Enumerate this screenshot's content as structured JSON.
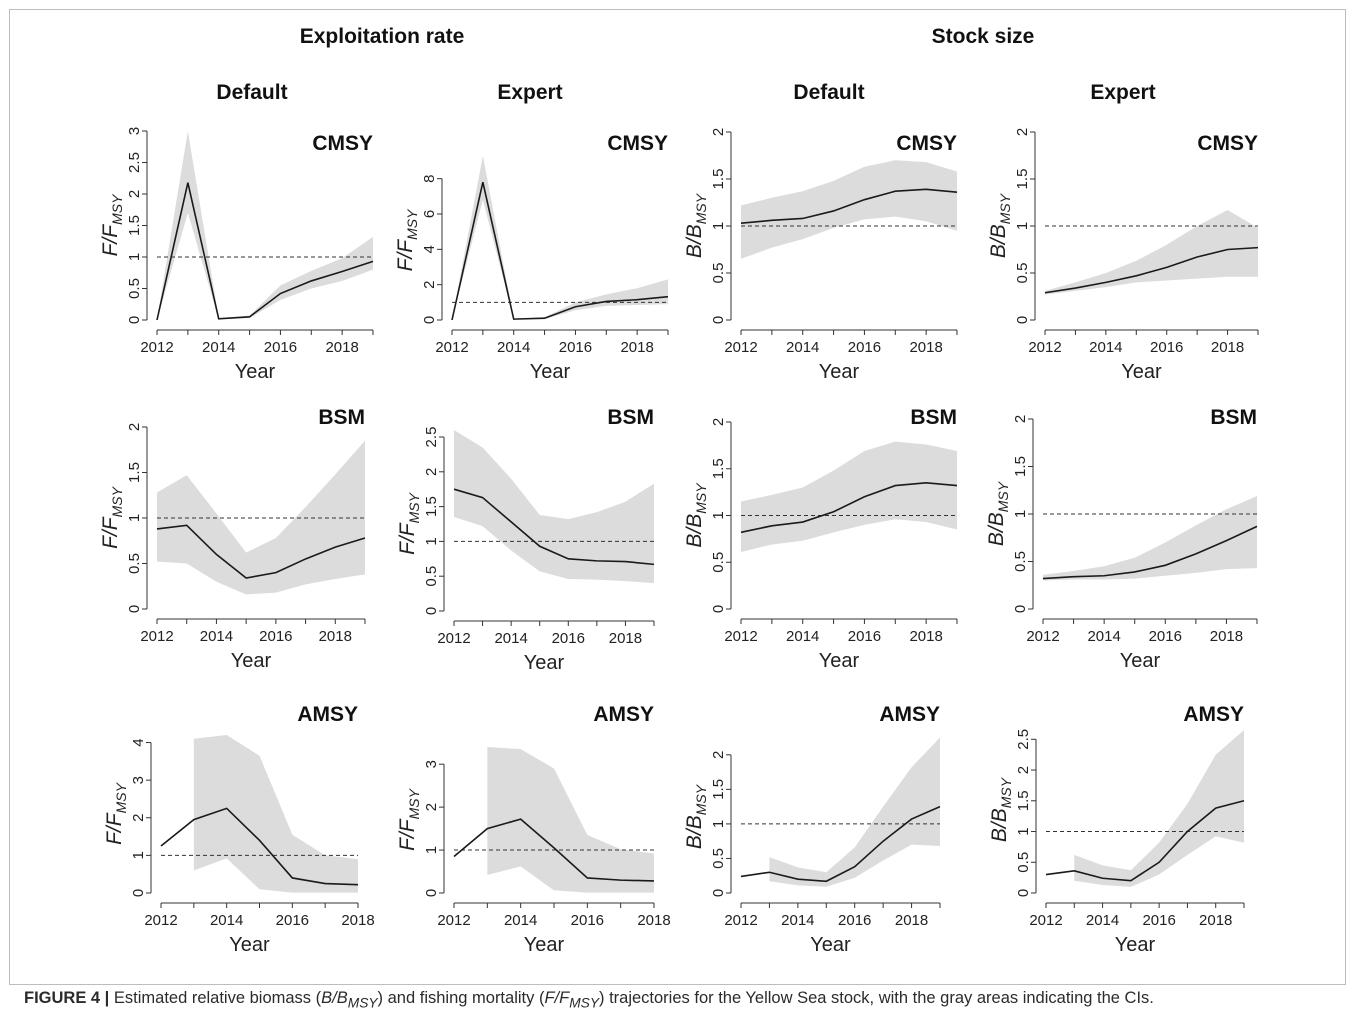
{
  "caption": {
    "label": "FIGURE 4 |",
    "parts": [
      "Estimated relative biomass (",
      "B/B",
      "MSY",
      ") and fishing mortality (",
      "F/F",
      "MSY",
      ") trajectories for the Yellow Sea stock, with the gray areas indicating the CIs."
    ]
  },
  "headers": {
    "groups": [
      "Exploitation rate",
      "Stock size"
    ],
    "columns": [
      "Default",
      "Expert",
      "Default",
      "Expert"
    ]
  },
  "colors": {
    "band": "#dcdcdc",
    "line": "#1a1a1a",
    "reference": "#333333"
  },
  "chart_data": [
    {
      "type": "line",
      "method": "CMSY",
      "column": "Default",
      "group": "Exploitation rate",
      "ylabel": "F/F",
      "ylabel_sub": "MSY",
      "xlabel": "Year",
      "ylim": [
        0,
        3
      ],
      "yticks": [
        0,
        0.5,
        1,
        1.5,
        2,
        2.5,
        3
      ],
      "xticks": [
        2012,
        2014,
        2016,
        2018
      ],
      "x": [
        2012,
        2013,
        2014,
        2015,
        2016,
        2017,
        2018,
        2019
      ],
      "values": [
        0,
        2.18,
        0.02,
        0.05,
        0.42,
        0.62,
        0.77,
        0.93
      ],
      "lower": [
        0,
        1.7,
        0.01,
        0.03,
        0.32,
        0.5,
        0.62,
        0.8
      ],
      "upper": [
        0,
        3.0,
        0.03,
        0.07,
        0.55,
        0.78,
        0.98,
        1.32
      ],
      "reference": 1
    },
    {
      "type": "line",
      "method": "CMSY",
      "column": "Expert",
      "group": "Exploitation rate",
      "ylabel": "F/F",
      "ylabel_sub": "MSY",
      "xlabel": "Year",
      "ylim": [
        0,
        9
      ],
      "yticks": [
        0,
        2,
        4,
        6,
        8
      ],
      "xticks": [
        2012,
        2014,
        2016,
        2018
      ],
      "x": [
        2012,
        2013,
        2014,
        2015,
        2016,
        2017,
        2018,
        2019
      ],
      "values": [
        0,
        7.8,
        0.05,
        0.1,
        0.75,
        1.05,
        1.15,
        1.32
      ],
      "lower": [
        0,
        6.8,
        0.03,
        0.05,
        0.55,
        0.8,
        0.85,
        0.9
      ],
      "upper": [
        0,
        9.3,
        0.08,
        0.15,
        1.0,
        1.45,
        1.8,
        2.3
      ],
      "reference": 1
    },
    {
      "type": "line",
      "method": "CMSY",
      "column": "Default",
      "group": "Stock size",
      "ylabel": "B/B",
      "ylabel_sub": "MSY",
      "xlabel": "Year",
      "ylim": [
        0,
        2
      ],
      "yticks": [
        0,
        0.5,
        1,
        1.5,
        2
      ],
      "xticks": [
        2012,
        2014,
        2016,
        2018
      ],
      "x": [
        2012,
        2013,
        2014,
        2015,
        2016,
        2017,
        2018,
        2019
      ],
      "values": [
        1.03,
        1.06,
        1.08,
        1.16,
        1.28,
        1.37,
        1.39,
        1.36
      ],
      "lower": [
        0.65,
        0.77,
        0.86,
        0.98,
        1.07,
        1.1,
        1.05,
        0.95
      ],
      "upper": [
        1.22,
        1.3,
        1.37,
        1.48,
        1.63,
        1.7,
        1.68,
        1.58
      ],
      "reference": 1
    },
    {
      "type": "line",
      "method": "CMSY",
      "column": "Expert",
      "group": "Stock size",
      "ylabel": "B/B",
      "ylabel_sub": "MSY",
      "xlabel": "Year",
      "ylim": [
        0,
        2
      ],
      "yticks": [
        0,
        0.5,
        1,
        1.5,
        2
      ],
      "xticks": [
        2012,
        2014,
        2016,
        2018
      ],
      "x": [
        2012,
        2013,
        2014,
        2015,
        2016,
        2017,
        2018,
        2019
      ],
      "values": [
        0.29,
        0.34,
        0.4,
        0.47,
        0.56,
        0.67,
        0.75,
        0.77
      ],
      "lower": [
        0.27,
        0.31,
        0.35,
        0.4,
        0.42,
        0.44,
        0.46,
        0.46
      ],
      "upper": [
        0.31,
        0.4,
        0.5,
        0.63,
        0.8,
        1.0,
        1.17,
        0.98
      ],
      "reference": 1
    },
    {
      "type": "line",
      "method": "BSM",
      "column": "Default",
      "group": "Exploitation rate",
      "ylabel": "F/F",
      "ylabel_sub": "MSY",
      "xlabel": "Year",
      "ylim": [
        0,
        2
      ],
      "yticks": [
        0,
        0.5,
        1,
        1.5,
        2
      ],
      "xticks": [
        2012,
        2014,
        2016,
        2018
      ],
      "x": [
        2012,
        2013,
        2014,
        2015,
        2016,
        2017,
        2018,
        2019
      ],
      "values": [
        0.88,
        0.92,
        0.6,
        0.34,
        0.4,
        0.55,
        0.68,
        0.78
      ],
      "lower": [
        0.52,
        0.5,
        0.3,
        0.16,
        0.18,
        0.27,
        0.33,
        0.38
      ],
      "upper": [
        1.28,
        1.47,
        1.05,
        0.62,
        0.78,
        1.12,
        1.48,
        1.85
      ],
      "reference": 1
    },
    {
      "type": "line",
      "method": "BSM",
      "column": "Expert",
      "group": "Exploitation rate",
      "ylabel": "F/F",
      "ylabel_sub": "MSY",
      "xlabel": "Year",
      "ylim": [
        0,
        2.5
      ],
      "yticks": [
        0,
        0.5,
        1,
        1.5,
        2,
        2.5
      ],
      "xticks": [
        2012,
        2014,
        2016,
        2018
      ],
      "x": [
        2012,
        2013,
        2014,
        2015,
        2016,
        2017,
        2018,
        2019
      ],
      "values": [
        1.75,
        1.63,
        1.28,
        0.93,
        0.75,
        0.72,
        0.71,
        0.67
      ],
      "lower": [
        1.35,
        1.22,
        0.87,
        0.57,
        0.46,
        0.45,
        0.43,
        0.4
      ],
      "upper": [
        2.6,
        2.35,
        1.9,
        1.38,
        1.32,
        1.42,
        1.57,
        1.83
      ],
      "reference": 1
    },
    {
      "type": "line",
      "method": "BSM",
      "column": "Default",
      "group": "Stock size",
      "ylabel": "B/B",
      "ylabel_sub": "MSY",
      "xlabel": "Year",
      "ylim": [
        0,
        2
      ],
      "yticks": [
        0,
        0.5,
        1,
        1.5,
        2
      ],
      "xticks": [
        2012,
        2014,
        2016,
        2018
      ],
      "x": [
        2012,
        2013,
        2014,
        2015,
        2016,
        2017,
        2018,
        2019
      ],
      "values": [
        0.82,
        0.89,
        0.93,
        1.04,
        1.2,
        1.32,
        1.35,
        1.32
      ],
      "lower": [
        0.61,
        0.69,
        0.73,
        0.82,
        0.9,
        0.96,
        0.93,
        0.85
      ],
      "upper": [
        1.15,
        1.22,
        1.3,
        1.48,
        1.69,
        1.79,
        1.76,
        1.69
      ],
      "reference": 1
    },
    {
      "type": "line",
      "method": "BSM",
      "column": "Expert",
      "group": "Stock size",
      "ylabel": "B/B",
      "ylabel_sub": "MSY",
      "xlabel": "Year",
      "ylim": [
        0,
        2
      ],
      "yticks": [
        0,
        0.5,
        1,
        1.5,
        2
      ],
      "xticks": [
        2012,
        2014,
        2016,
        2018
      ],
      "x": [
        2012,
        2013,
        2014,
        2015,
        2016,
        2017,
        2018,
        2019
      ],
      "values": [
        0.32,
        0.34,
        0.35,
        0.39,
        0.46,
        0.58,
        0.72,
        0.87
      ],
      "lower": [
        0.3,
        0.31,
        0.31,
        0.32,
        0.35,
        0.38,
        0.42,
        0.43
      ],
      "upper": [
        0.36,
        0.4,
        0.45,
        0.54,
        0.7,
        0.88,
        1.05,
        1.19
      ],
      "reference": 1
    },
    {
      "type": "line",
      "method": "AMSY",
      "column": "Default",
      "group": "Exploitation rate",
      "ylabel": "F/F",
      "ylabel_sub": "MSY",
      "xlabel": "Year",
      "ylim": [
        0,
        4.2
      ],
      "yticks": [
        0,
        1,
        2,
        3,
        4
      ],
      "xticks": [
        2012,
        2014,
        2016,
        2018
      ],
      "x": [
        2012,
        2013,
        2014,
        2015,
        2016,
        2017,
        2018
      ],
      "values": [
        1.25,
        1.95,
        2.25,
        1.4,
        0.4,
        0.25,
        0.22
      ],
      "lower": [
        null,
        0.6,
        0.92,
        0.1,
        0.01,
        0.01,
        0.01
      ],
      "upper": [
        null,
        4.1,
        4.2,
        3.65,
        1.55,
        1.0,
        0.9
      ],
      "reference": 1
    },
    {
      "type": "line",
      "method": "AMSY",
      "column": "Expert",
      "group": "Exploitation rate",
      "ylabel": "F/F",
      "ylabel_sub": "MSY",
      "xlabel": "Year",
      "ylim": [
        0,
        3.4
      ],
      "yticks": [
        0,
        1,
        2,
        3
      ],
      "xticks": [
        2012,
        2014,
        2016,
        2018
      ],
      "x": [
        2012,
        2013,
        2014,
        2015,
        2016,
        2017,
        2018
      ],
      "values": [
        0.85,
        1.5,
        1.72,
        1.05,
        0.35,
        0.3,
        0.28
      ],
      "lower": [
        null,
        0.42,
        0.62,
        0.06,
        0.01,
        0.01,
        0.01
      ],
      "upper": [
        null,
        3.4,
        3.35,
        2.9,
        1.35,
        1.02,
        0.92
      ],
      "reference": 1
    },
    {
      "type": "line",
      "method": "AMSY",
      "column": "Default",
      "group": "Stock size",
      "ylabel": "B/B",
      "ylabel_sub": "MSY",
      "xlabel": "Year",
      "ylim": [
        0,
        2.2
      ],
      "yticks": [
        0,
        0.5,
        1,
        1.5,
        2
      ],
      "xticks": [
        2012,
        2014,
        2016,
        2018
      ],
      "x": [
        2012,
        2013,
        2014,
        2015,
        2016,
        2017,
        2018,
        2019
      ],
      "values": [
        0.24,
        0.3,
        0.2,
        0.17,
        0.38,
        0.75,
        1.07,
        1.25
      ],
      "lower": [
        null,
        0.17,
        0.11,
        0.09,
        0.22,
        0.47,
        0.7,
        0.68
      ],
      "upper": [
        null,
        0.52,
        0.37,
        0.3,
        0.66,
        1.25,
        1.82,
        2.25
      ],
      "reference": 1
    },
    {
      "type": "line",
      "method": "AMSY",
      "column": "Expert",
      "group": "Stock size",
      "ylabel": "B/B",
      "ylabel_sub": "MSY",
      "xlabel": "Year",
      "ylim": [
        0,
        2.7
      ],
      "yticks": [
        0,
        0.5,
        1,
        1.5,
        2,
        2.5
      ],
      "xticks": [
        2012,
        2014,
        2016,
        2018
      ],
      "x": [
        2012,
        2013,
        2014,
        2015,
        2016,
        2017,
        2018,
        2019
      ],
      "values": [
        0.3,
        0.36,
        0.24,
        0.2,
        0.5,
        1.0,
        1.38,
        1.5
      ],
      "lower": [
        null,
        0.2,
        0.13,
        0.1,
        0.3,
        0.62,
        0.92,
        0.82
      ],
      "upper": [
        null,
        0.62,
        0.45,
        0.37,
        0.82,
        1.45,
        2.25,
        2.65
      ],
      "reference": 1
    }
  ]
}
